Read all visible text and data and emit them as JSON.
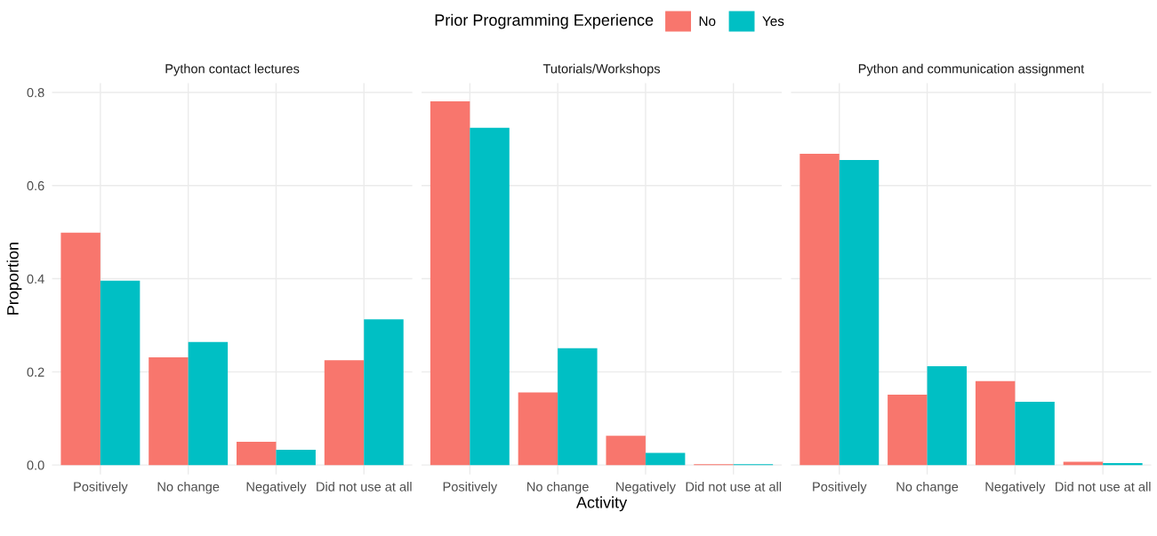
{
  "chart_data": [
    {
      "type": "bar",
      "title": "Python contact lectures",
      "ylabel": "Proportion",
      "legend_title": "Prior Programming Experience",
      "legend": "top",
      "grid": true,
      "categories": [
        "Positively",
        "No change",
        "Negatively",
        "Did not use at all"
      ],
      "ylim": [
        -0.02,
        0.82
      ],
      "yticks": [
        {
          "value": 0,
          "label": "0.0"
        },
        0.2,
        0.4,
        0.6,
        0.8
      ],
      "series": [
        {
          "name": "No",
          "color": "#f8766d",
          "values": [
            0.499,
            0.231,
            0.05,
            0.225
          ]
        },
        {
          "name": "Yes",
          "color": "#00bfc4",
          "values": [
            0.396,
            0.264,
            0.033,
            0.313
          ]
        }
      ]
    },
    {
      "type": "bar",
      "title": "Tutorials/Workshops",
      "xlabel": "Activity",
      "grid": true,
      "tick_labels": "x",
      "categories": [
        "Positively",
        "No change",
        "Negatively",
        "Did not use at all"
      ],
      "ylim": [
        -0.02,
        0.82
      ],
      "yticks": [
        0,
        0.2,
        0.4,
        0.6,
        0.8
      ],
      "series": [
        {
          "color": "#f8766d",
          "values": [
            0.781,
            0.156,
            0.063,
            0.002
          ]
        },
        {
          "color": "#00bfc4",
          "values": [
            0.724,
            0.251,
            0.026,
            0.002
          ]
        }
      ]
    },
    {
      "type": "bar",
      "title": "Python and communication assignment",
      "grid": true,
      "tick_labels": "x",
      "categories": [
        "Positively",
        "No change",
        "Negatively",
        "Did not use at all"
      ],
      "ylim": [
        -0.02,
        0.82
      ],
      "yticks": [
        0,
        0.2,
        0.4,
        0.6,
        0.8
      ],
      "series": [
        {
          "color": "#f8766d",
          "values": [
            0.668,
            0.151,
            0.18,
            0.007
          ]
        },
        {
          "color": "#00bfc4",
          "values": [
            0.655,
            0.212,
            0.136,
            0.004
          ]
        }
      ]
    }
  ]
}
